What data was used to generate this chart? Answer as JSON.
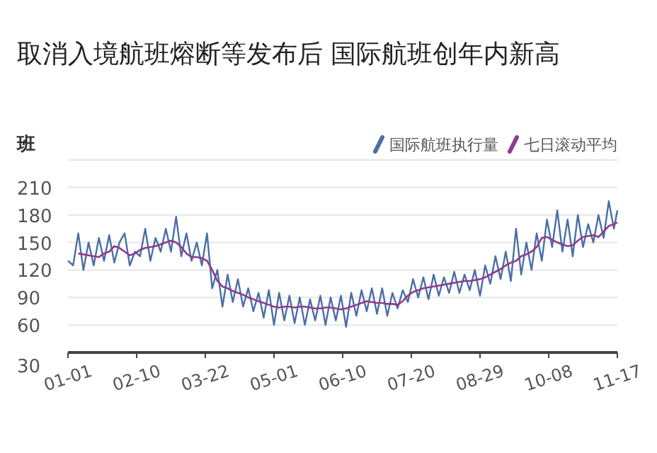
{
  "chart_data": {
    "type": "line",
    "title": "取消入境航班熔断等发布后 国际航班创年内新高",
    "ylabel": "班",
    "x": [
      "--01-01",
      "--01-04",
      "--01-07",
      "--01-10",
      "--01-13",
      "--01-16",
      "--01-19",
      "--01-22",
      "--01-25",
      "--01-28",
      "--01-31",
      "--02-03",
      "--02-06",
      "--02-09",
      "--02-12",
      "--02-15",
      "--02-18",
      "--02-21",
      "--02-24",
      "--02-27",
      "--03-02",
      "--03-05",
      "--03-08",
      "--03-11",
      "--03-14",
      "--03-17",
      "--03-20",
      "--03-23",
      "--03-26",
      "--03-29",
      "--04-01",
      "--04-04",
      "--04-07",
      "--04-10",
      "--04-13",
      "--04-16",
      "--04-19",
      "--04-22",
      "--04-25",
      "--04-28",
      "--05-01",
      "--05-04",
      "--05-07",
      "--05-10",
      "--05-13",
      "--05-16",
      "--05-19",
      "--05-22",
      "--05-25",
      "--05-28",
      "--05-31",
      "--06-03",
      "--06-06",
      "--06-09",
      "--06-12",
      "--06-15",
      "--06-18",
      "--06-21",
      "--06-24",
      "--06-27",
      "--06-30",
      "--07-03",
      "--07-06",
      "--07-09",
      "--07-12",
      "--07-15",
      "--07-18",
      "--07-21",
      "--07-24",
      "--07-27",
      "--07-30",
      "--08-02",
      "--08-05",
      "--08-08",
      "--08-11",
      "--08-14",
      "--08-17",
      "--08-20",
      "--08-23",
      "--08-26",
      "--08-29",
      "--09-01",
      "--09-04",
      "--09-07",
      "--09-10",
      "--09-13",
      "--09-16",
      "--09-19",
      "--09-22",
      "--09-25",
      "--09-28",
      "--10-01",
      "--10-04",
      "--10-07",
      "--10-10",
      "--10-13",
      "--10-16",
      "--10-19",
      "--10-22",
      "--10-25",
      "--10-28",
      "--10-31",
      "--11-03",
      "--11-06",
      "--11-09",
      "--11-12",
      "--11-15",
      "--11-17"
    ],
    "series": [
      {
        "name": "国际航班执行量",
        "color": "#4a6fa5",
        "values": [
          130,
          125,
          160,
          120,
          150,
          125,
          155,
          130,
          158,
          128,
          150,
          160,
          125,
          140,
          135,
          165,
          130,
          155,
          140,
          165,
          140,
          178,
          135,
          160,
          130,
          150,
          125,
          160,
          100,
          120,
          80,
          115,
          85,
          110,
          80,
          100,
          75,
          95,
          68,
          98,
          60,
          95,
          65,
          92,
          62,
          90,
          60,
          88,
          65,
          92,
          60,
          90,
          65,
          92,
          58,
          95,
          70,
          98,
          75,
          100,
          72,
          100,
          70,
          95,
          78,
          98,
          85,
          110,
          90,
          112,
          88,
          115,
          92,
          112,
          95,
          118,
          95,
          115,
          98,
          120,
          92,
          125,
          105,
          135,
          110,
          140,
          108,
          165,
          115,
          150,
          120,
          160,
          130,
          175,
          145,
          185,
          140,
          175,
          135,
          180,
          145,
          170,
          150,
          180,
          155,
          195,
          165,
          185
        ]
      },
      {
        "name": "七日滚动平均",
        "color": "#8e3c8e",
        "values": [
          null,
          null,
          138,
          137,
          136,
          135,
          134,
          138,
          140,
          146,
          144,
          140,
          136,
          138,
          142,
          144,
          145,
          146,
          148,
          150,
          152,
          150,
          145,
          138,
          134,
          134,
          133,
          130,
          120,
          108,
          102,
          100,
          97,
          95,
          93,
          90,
          88,
          86,
          84,
          82,
          80,
          79,
          80,
          80,
          79,
          80,
          80,
          79,
          78,
          78,
          79,
          79,
          78,
          77,
          78,
          80,
          82,
          84,
          86,
          85,
          84,
          84,
          83,
          83,
          82,
          86,
          92,
          96,
          98,
          100,
          101,
          102,
          103,
          104,
          105,
          106,
          107,
          108,
          108,
          109,
          110,
          112,
          115,
          118,
          121,
          125,
          128,
          130,
          135,
          137,
          140,
          145,
          155,
          156,
          153,
          150,
          148,
          146,
          147,
          152,
          156,
          157,
          158,
          156,
          162,
          168,
          170,
          172
        ]
      }
    ],
    "xlim": [
      "--01-01",
      "--11-17"
    ],
    "xticks": [
      {
        "value": "--01-01",
        "label": "01-01"
      },
      {
        "value": "--02-10",
        "label": "02-10"
      },
      {
        "value": "--03-22",
        "label": "03-22"
      },
      {
        "value": "--05-01",
        "label": "05-01"
      },
      {
        "value": "--06-10",
        "label": "06-10"
      },
      {
        "value": "--07-20",
        "label": "07-20"
      },
      {
        "value": "--08-29",
        "label": "08-29"
      },
      {
        "value": "--10-08",
        "label": "10-08"
      },
      {
        "value": "--11-17",
        "label": "11-17"
      }
    ],
    "ylim": [
      30,
      240
    ],
    "yticks": [
      30,
      60,
      90,
      120,
      150,
      180,
      210,
      {
        "value": 240,
        "label": null
      }
    ],
    "grid": "y",
    "legend": "top right",
    "marker": "none",
    "line_style": "solid"
  }
}
